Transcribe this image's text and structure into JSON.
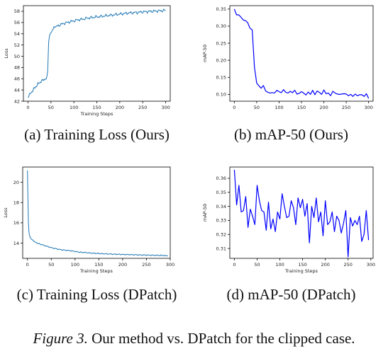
{
  "figure_caption": {
    "label": "Figure 3.",
    "text": "Our method vs. DPatch for the clipped case."
  },
  "panels": [
    {
      "caption": "(a) Training Loss (Ours)"
    },
    {
      "caption": "(b) mAP-50 (Ours)"
    },
    {
      "caption": "(c) Training Loss (DPatch)"
    },
    {
      "caption": "(d) mAP-50 (DPatch)"
    }
  ],
  "chart_data": [
    {
      "type": "line",
      "xlabel": "Training Steps",
      "ylabel": "Loss",
      "xlim": [
        -10,
        310
      ],
      "ylim": [
        42,
        59
      ],
      "xticks": [
        0,
        50,
        100,
        150,
        200,
        250,
        300
      ],
      "yticks": [
        42,
        44,
        46,
        48,
        50,
        52,
        54,
        56,
        58
      ],
      "color": "#1f77b4",
      "series": [
        {
          "x": [
            0,
            5,
            10,
            15,
            20,
            25,
            30,
            35,
            40,
            43,
            45,
            47,
            50,
            55,
            60,
            70,
            80,
            90,
            100,
            110,
            120,
            130,
            140,
            150,
            160,
            170,
            180,
            190,
            200,
            210,
            220,
            230,
            240,
            250,
            260,
            270,
            280,
            290,
            300
          ],
          "y": [
            42.8,
            43.3,
            43.9,
            44.4,
            44.9,
            45.3,
            45.6,
            45.9,
            46.0,
            47.5,
            52.5,
            53.8,
            54.3,
            54.9,
            55.2,
            55.6,
            55.9,
            56.1,
            56.3,
            56.5,
            56.6,
            56.8,
            56.9,
            57.0,
            57.1,
            57.2,
            57.3,
            57.4,
            57.5,
            57.6,
            57.7,
            57.75,
            57.8,
            57.9,
            57.95,
            58.0,
            58.05,
            58.1,
            58.15
          ]
        }
      ]
    },
    {
      "type": "line",
      "xlabel": "",
      "ylabel": "mAP-50",
      "xlim": [
        -10,
        310
      ],
      "ylim": [
        0.08,
        0.36
      ],
      "xticks": [
        0,
        50,
        100,
        150,
        200,
        250,
        300
      ],
      "yticks": [
        0.1,
        0.15,
        0.2,
        0.25,
        0.3,
        0.35
      ],
      "color": "#0000ff",
      "series": [
        {
          "x": [
            0,
            5,
            10,
            15,
            20,
            25,
            30,
            35,
            40,
            45,
            50,
            55,
            60,
            65,
            70,
            75,
            80,
            85,
            90,
            95,
            100,
            105,
            110,
            115,
            120,
            125,
            130,
            135,
            140,
            145,
            150,
            155,
            160,
            165,
            170,
            175,
            180,
            185,
            190,
            195,
            200,
            205,
            210,
            215,
            220,
            225,
            230,
            235,
            240,
            245,
            250,
            255,
            260,
            265,
            270,
            275,
            280,
            285,
            290,
            295,
            300
          ],
          "y": [
            0.35,
            0.333,
            0.333,
            0.326,
            0.318,
            0.316,
            0.31,
            0.294,
            0.289,
            0.18,
            0.133,
            0.125,
            0.118,
            0.126,
            0.11,
            0.106,
            0.104,
            0.105,
            0.104,
            0.112,
            0.108,
            0.105,
            0.114,
            0.106,
            0.104,
            0.109,
            0.105,
            0.112,
            0.101,
            0.103,
            0.108,
            0.104,
            0.098,
            0.107,
            0.1,
            0.112,
            0.099,
            0.11,
            0.106,
            0.1,
            0.113,
            0.102,
            0.104,
            0.096,
            0.109,
            0.104,
            0.101,
            0.1,
            0.101,
            0.102,
            0.101,
            0.096,
            0.1,
            0.094,
            0.101,
            0.096,
            0.099,
            0.099,
            0.094,
            0.102,
            0.088
          ]
        }
      ]
    },
    {
      "type": "line",
      "xlabel": "Training Steps",
      "ylabel": "Loss",
      "xlim": [
        -10,
        300
      ],
      "ylim": [
        12.5,
        21.5
      ],
      "xticks": [
        0,
        50,
        100,
        150,
        200,
        250,
        300
      ],
      "yticks": [
        14,
        16,
        18,
        20
      ],
      "color": "#1f77b4",
      "series": [
        {
          "x": [
            0,
            1,
            2,
            3,
            4,
            6,
            10,
            15,
            20,
            30,
            40,
            50,
            60,
            70,
            80,
            90,
            100,
            110,
            120,
            130,
            140,
            150,
            160,
            170,
            180,
            190,
            200,
            210,
            220,
            230,
            240,
            250,
            260,
            270,
            280,
            290,
            295
          ],
          "y": [
            21.2,
            18.5,
            16.0,
            15.2,
            14.8,
            14.55,
            14.3,
            14.15,
            14.0,
            13.85,
            13.7,
            13.55,
            13.45,
            13.35,
            13.3,
            13.25,
            13.18,
            13.1,
            13.08,
            13.03,
            13.0,
            12.98,
            12.95,
            12.93,
            12.91,
            12.9,
            12.88,
            12.87,
            12.86,
            12.84,
            12.83,
            12.82,
            12.81,
            12.8,
            12.79,
            12.78,
            12.77
          ]
        }
      ]
    },
    {
      "type": "line",
      "xlabel": "Training Steps",
      "ylabel": "mAP-50",
      "xlim": [
        -10,
        305
      ],
      "ylim": [
        0.303,
        0.368
      ],
      "xticks": [
        0,
        50,
        100,
        150,
        200,
        250,
        300
      ],
      "yticks": [
        0.31,
        0.32,
        0.33,
        0.34,
        0.35,
        0.36
      ],
      "color": "#0000ff",
      "series": [
        {
          "x": [
            0,
            5,
            10,
            15,
            20,
            25,
            30,
            35,
            40,
            45,
            50,
            55,
            60,
            65,
            70,
            75,
            80,
            85,
            90,
            95,
            100,
            105,
            110,
            115,
            120,
            125,
            130,
            135,
            140,
            145,
            150,
            155,
            160,
            165,
            170,
            175,
            180,
            185,
            190,
            195,
            200,
            205,
            210,
            215,
            220,
            225,
            230,
            235,
            240,
            245,
            250,
            255,
            260,
            265,
            270,
            275,
            280,
            285,
            290,
            295
          ],
          "y": [
            0.366,
            0.341,
            0.355,
            0.336,
            0.337,
            0.347,
            0.325,
            0.338,
            0.333,
            0.327,
            0.355,
            0.344,
            0.337,
            0.336,
            0.323,
            0.343,
            0.324,
            0.331,
            0.322,
            0.336,
            0.331,
            0.349,
            0.34,
            0.332,
            0.333,
            0.344,
            0.339,
            0.327,
            0.346,
            0.339,
            0.345,
            0.333,
            0.342,
            0.314,
            0.34,
            0.332,
            0.346,
            0.329,
            0.336,
            0.319,
            0.344,
            0.327,
            0.329,
            0.336,
            0.322,
            0.333,
            0.33,
            0.321,
            0.328,
            0.337,
            0.304,
            0.332,
            0.326,
            0.33,
            0.327,
            0.333,
            0.315,
            0.32,
            0.337,
            0.316
          ]
        }
      ]
    }
  ]
}
